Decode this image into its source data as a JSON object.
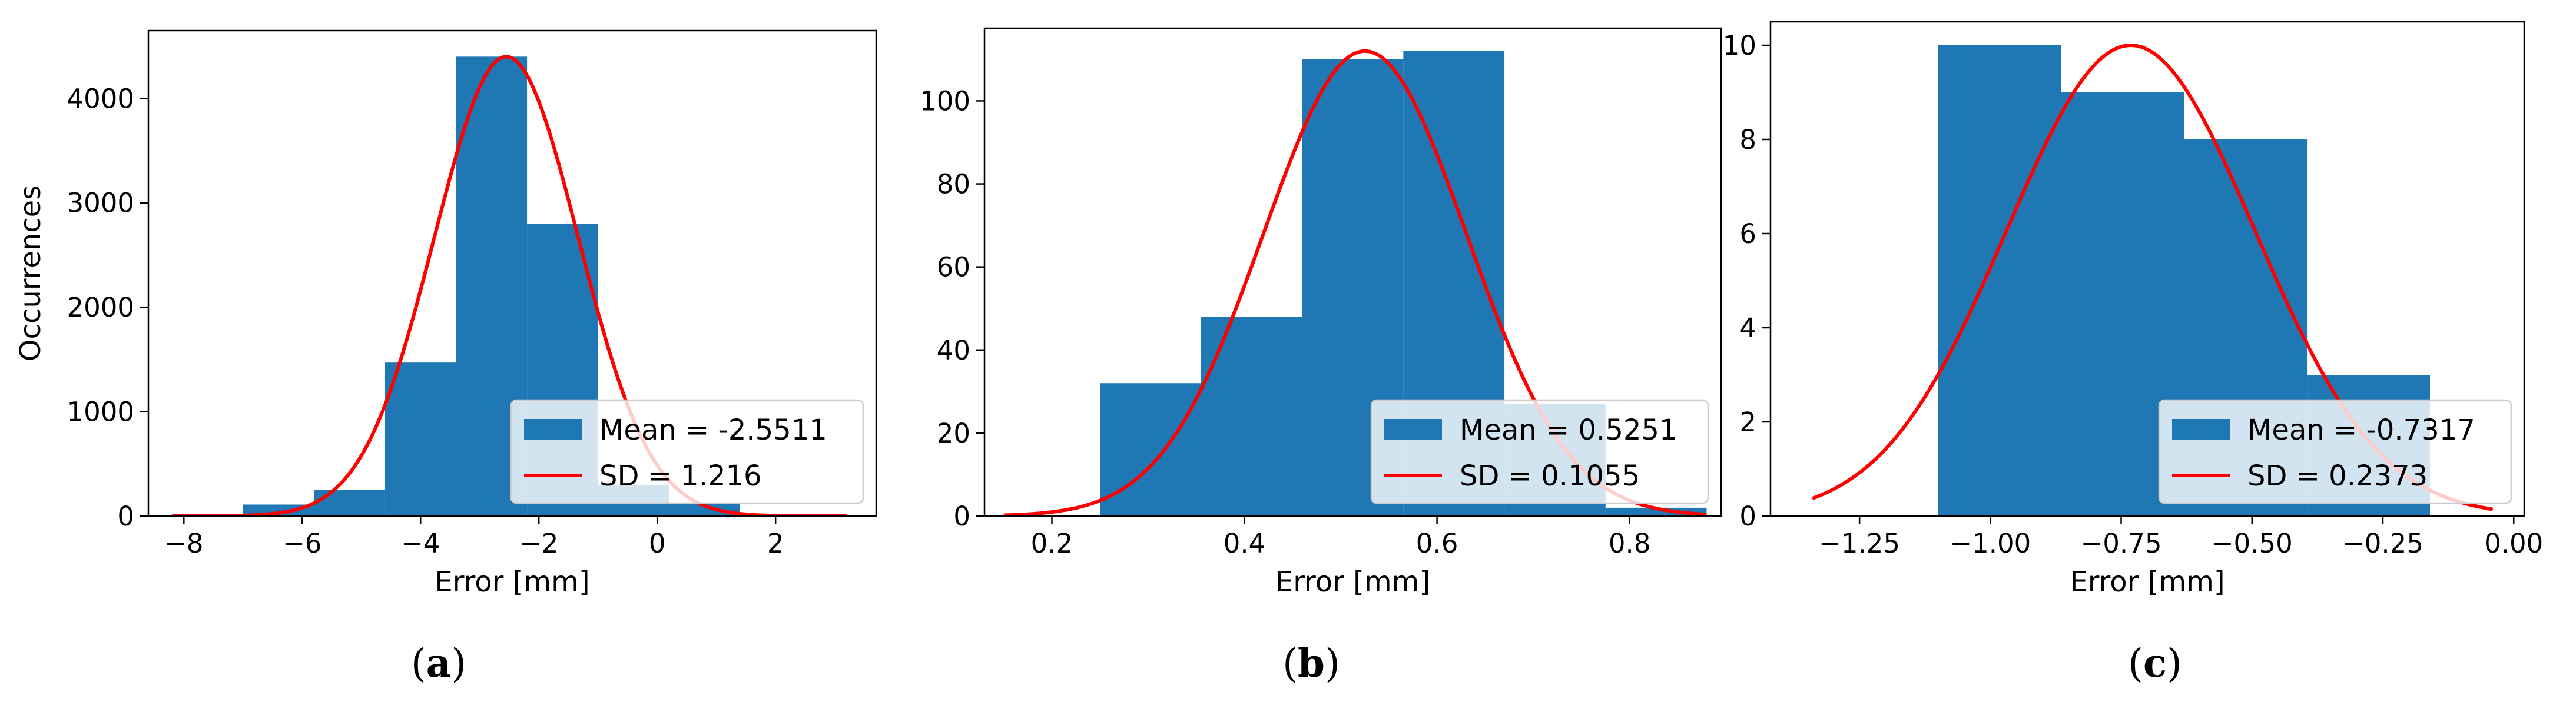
{
  "colors": {
    "bar": "#1f77b4",
    "fit_line": "#ff0000",
    "legend_frame": "#cccccc"
  },
  "chart_data": [
    {
      "type": "bar",
      "panel": "(a)",
      "caption_letter": "a",
      "xlabel": "Error [mm]",
      "ylabel": "Occurrences",
      "xlim": [
        -8.6,
        3.7
      ],
      "ylim": [
        0,
        4650
      ],
      "xticks": [
        -8,
        -6,
        -4,
        -2,
        0,
        2
      ],
      "yticks": [
        0,
        1000,
        2000,
        3000,
        4000
      ],
      "bins": [
        {
          "x0": -8.2,
          "x1": -7.0,
          "value": 10
        },
        {
          "x0": -7.0,
          "x1": -5.8,
          "value": 110
        },
        {
          "x0": -5.8,
          "x1": -4.6,
          "value": 250
        },
        {
          "x0": -4.6,
          "x1": -3.4,
          "value": 1470
        },
        {
          "x0": -3.4,
          "x1": -2.2,
          "value": 4400
        },
        {
          "x0": -2.2,
          "x1": -1.0,
          "value": 2800
        },
        {
          "x0": -1.0,
          "x1": 0.2,
          "value": 300
        },
        {
          "x0": 0.2,
          "x1": 1.4,
          "value": 130
        },
        {
          "x0": 1.4,
          "x1": 2.6,
          "value": 10
        },
        {
          "x0": 2.6,
          "x1": 3.2,
          "value": 5
        }
      ],
      "fit": {
        "mean": -2.5511,
        "sd": 1.216,
        "peak": 4400,
        "x_start": -8.2,
        "x_end": 3.2
      },
      "legend": {
        "position": "lower-right",
        "entries": [
          "Mean = -2.5511",
          "SD = 1.216"
        ]
      }
    },
    {
      "type": "bar",
      "panel": "(b)",
      "caption_letter": "b",
      "xlabel": "Error [mm]",
      "ylabel": "",
      "xlim": [
        0.13,
        0.895
      ],
      "ylim": [
        0,
        117.5
      ],
      "xticks": [
        0.2,
        0.4,
        0.6,
        0.8
      ],
      "yticks": [
        0,
        20,
        40,
        60,
        80,
        100
      ],
      "bins": [
        {
          "x0": 0.25,
          "x1": 0.355,
          "value": 32
        },
        {
          "x0": 0.355,
          "x1": 0.46,
          "value": 48
        },
        {
          "x0": 0.46,
          "x1": 0.565,
          "value": 110
        },
        {
          "x0": 0.565,
          "x1": 0.67,
          "value": 112
        },
        {
          "x0": 0.67,
          "x1": 0.775,
          "value": 27
        },
        {
          "x0": 0.775,
          "x1": 0.88,
          "value": 2
        }
      ],
      "fit": {
        "mean": 0.5251,
        "sd": 0.1055,
        "peak": 112,
        "x_start": 0.15,
        "x_end": 0.88
      },
      "legend": {
        "position": "lower-right",
        "entries": [
          "Mean = 0.5251",
          "SD = 0.1055"
        ]
      }
    },
    {
      "type": "bar",
      "panel": "(c)",
      "caption_letter": "c",
      "xlabel": "Error [mm]",
      "ylabel": "",
      "xlim": [
        -1.42,
        0.02
      ],
      "ylim": [
        0,
        10.5
      ],
      "xticks": [
        -1.25,
        -1.0,
        -0.75,
        -0.5,
        -0.25,
        0.0
      ],
      "xtick_labels": [
        "−1.25",
        "−1.00",
        "−0.75",
        "−0.50",
        "−0.25",
        "0.00"
      ],
      "yticks": [
        0,
        2,
        4,
        6,
        8,
        10
      ],
      "bins": [
        {
          "x0": -1.1,
          "x1": -0.865,
          "value": 10
        },
        {
          "x0": -0.865,
          "x1": -0.63,
          "value": 9
        },
        {
          "x0": -0.63,
          "x1": -0.395,
          "value": 8
        },
        {
          "x0": -0.395,
          "x1": -0.16,
          "value": 3
        }
      ],
      "fit": {
        "mean": -0.7317,
        "sd": 0.2373,
        "peak": 10,
        "x_start": -1.34,
        "x_end": -0.04
      },
      "legend": {
        "position": "lower-right",
        "entries": [
          "Mean = -0.7317",
          "SD = 0.2373"
        ]
      }
    }
  ]
}
